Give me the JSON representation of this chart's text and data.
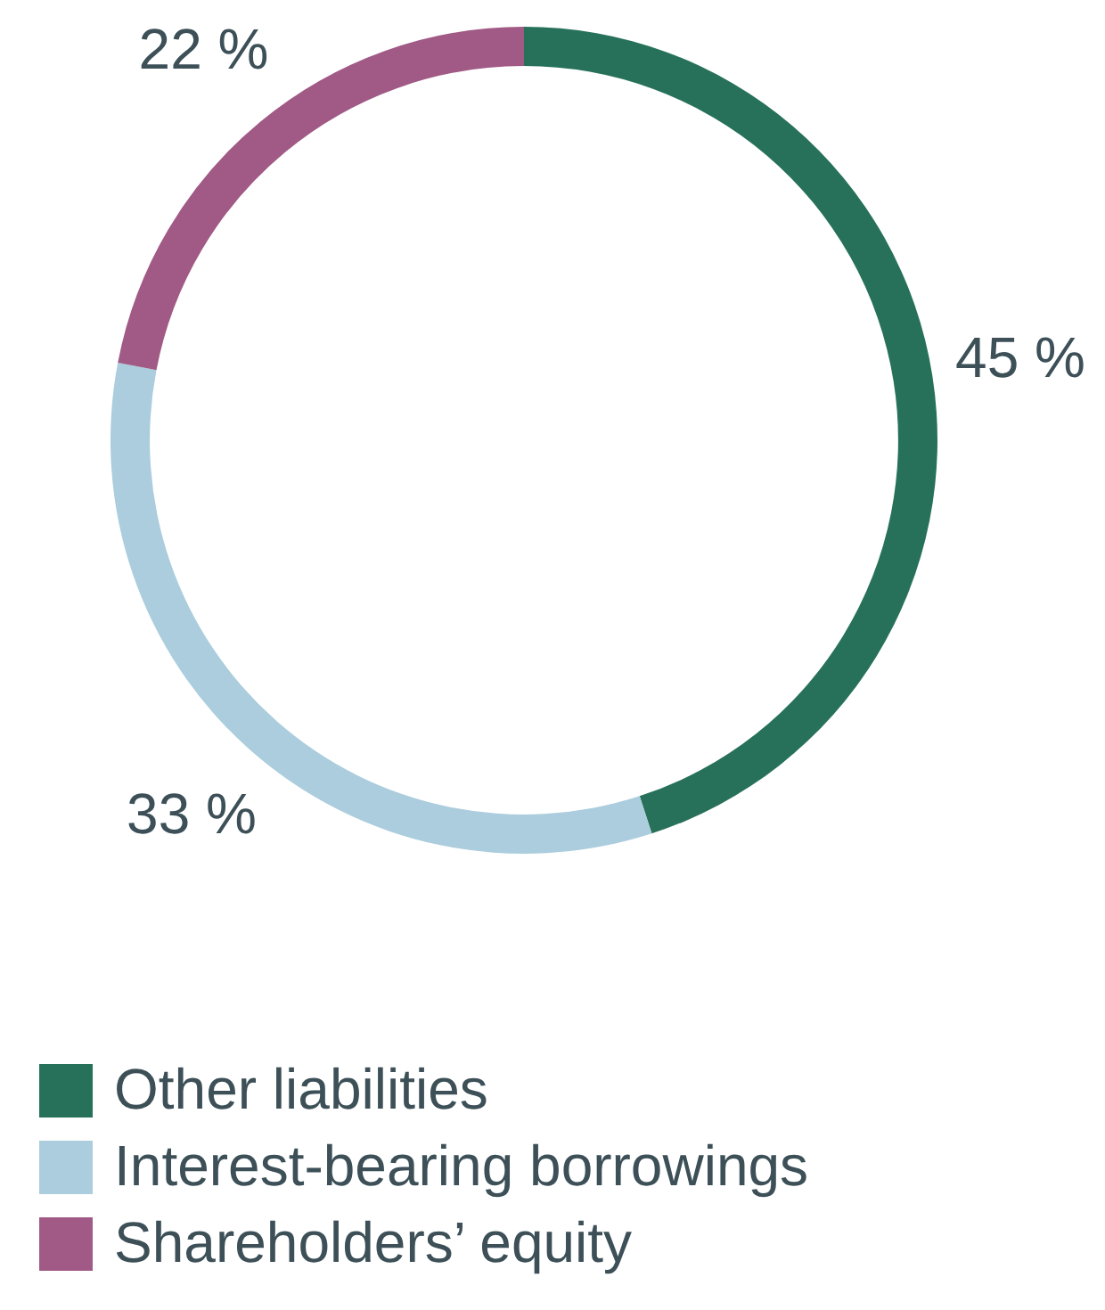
{
  "chart_data": {
    "type": "donut",
    "categories": [
      "Other liabilities",
      "Interest-bearing borrowings",
      "Shareholders’ equity"
    ],
    "values": [
      45,
      33,
      22
    ],
    "colors": [
      "#27715a",
      "#abcddd",
      "#a05a85"
    ],
    "value_labels": [
      "45 %",
      "33 %",
      "22 %"
    ],
    "legend": "bottom"
  }
}
